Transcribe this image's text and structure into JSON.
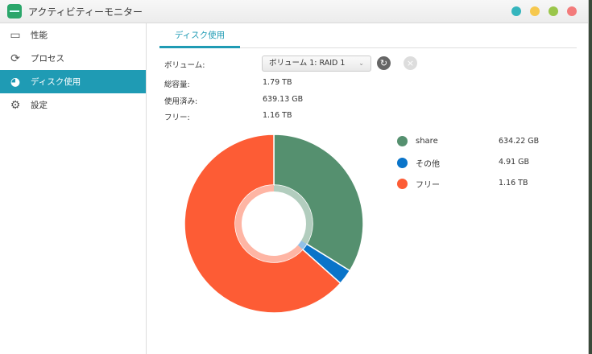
{
  "window": {
    "title": "アクティビティーモニター",
    "controls": [
      {
        "name": "minimize",
        "color": "#35b5bd"
      },
      {
        "name": "maximize",
        "color": "#f6c84e"
      },
      {
        "name": "restore",
        "color": "#9ac64a"
      },
      {
        "name": "close",
        "color": "#f37b7b"
      }
    ]
  },
  "sidebar": {
    "items": [
      {
        "label": "性能",
        "icon": "performance-icon"
      },
      {
        "label": "プロセス",
        "icon": "process-icon"
      },
      {
        "label": "ディスク使用",
        "icon": "disk-usage-icon",
        "selected": true
      },
      {
        "label": "設定",
        "icon": "gear-icon"
      }
    ]
  },
  "tabs": [
    {
      "label": "ディスク使用",
      "active": true
    }
  ],
  "volume": {
    "label": "ボリューム:",
    "selected": "ボリューム 1: RAID 1"
  },
  "info": [
    {
      "label": "総容量:",
      "value": "1.79 TB"
    },
    {
      "label": "使用済み:",
      "value": "639.13 GB"
    },
    {
      "label": "フリー:",
      "value": "1.16 TB"
    }
  ],
  "chart_data": {
    "type": "pie",
    "donut": true,
    "series": [
      {
        "name": "share",
        "value": "634.22 GB",
        "gb": 634.22,
        "color": "#55906f"
      },
      {
        "name": "その他",
        "value": "4.91 GB",
        "gb": 4.91,
        "color": "#0a74c9"
      },
      {
        "name": "フリー",
        "value": "1.16 TB",
        "gb": 1187.84,
        "color": "#fd5c35"
      }
    ],
    "legend": "right"
  },
  "accent": "#1f9bb4"
}
